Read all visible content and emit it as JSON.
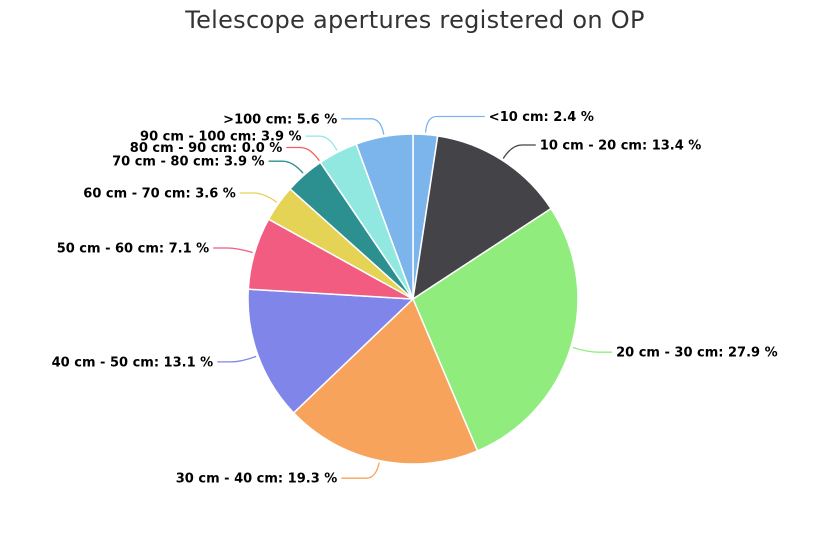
{
  "chart_data": {
    "type": "pie",
    "title": "Telescope apertures registered on OP",
    "unit": "%",
    "slices": [
      {
        "label": "<10 cm",
        "value": 2.4,
        "color": "#7cb5ec"
      },
      {
        "label": "10 cm - 20 cm",
        "value": 13.4,
        "color": "#434348"
      },
      {
        "label": "20 cm - 30 cm",
        "value": 27.9,
        "color": "#90ed7d"
      },
      {
        "label": "30 cm - 40 cm",
        "value": 19.3,
        "color": "#f7a35c"
      },
      {
        "label": "40 cm - 50 cm",
        "value": 13.1,
        "color": "#8085e9"
      },
      {
        "label": "50 cm - 60 cm",
        "value": 7.1,
        "color": "#f15c80"
      },
      {
        "label": "60 cm - 70 cm",
        "value": 3.6,
        "color": "#e4d354"
      },
      {
        "label": "70 cm - 80 cm",
        "value": 3.9,
        "color": "#2b908f"
      },
      {
        "label": "80 cm - 90 cm",
        "value": 0.0,
        "color": "#f45b5b"
      },
      {
        "label": "90 cm - 100 cm",
        "value": 3.9,
        "color": "#91e8e1"
      },
      {
        "label": ">100 cm",
        "value": 5.6,
        "color": "#7cb5ec"
      }
    ]
  }
}
